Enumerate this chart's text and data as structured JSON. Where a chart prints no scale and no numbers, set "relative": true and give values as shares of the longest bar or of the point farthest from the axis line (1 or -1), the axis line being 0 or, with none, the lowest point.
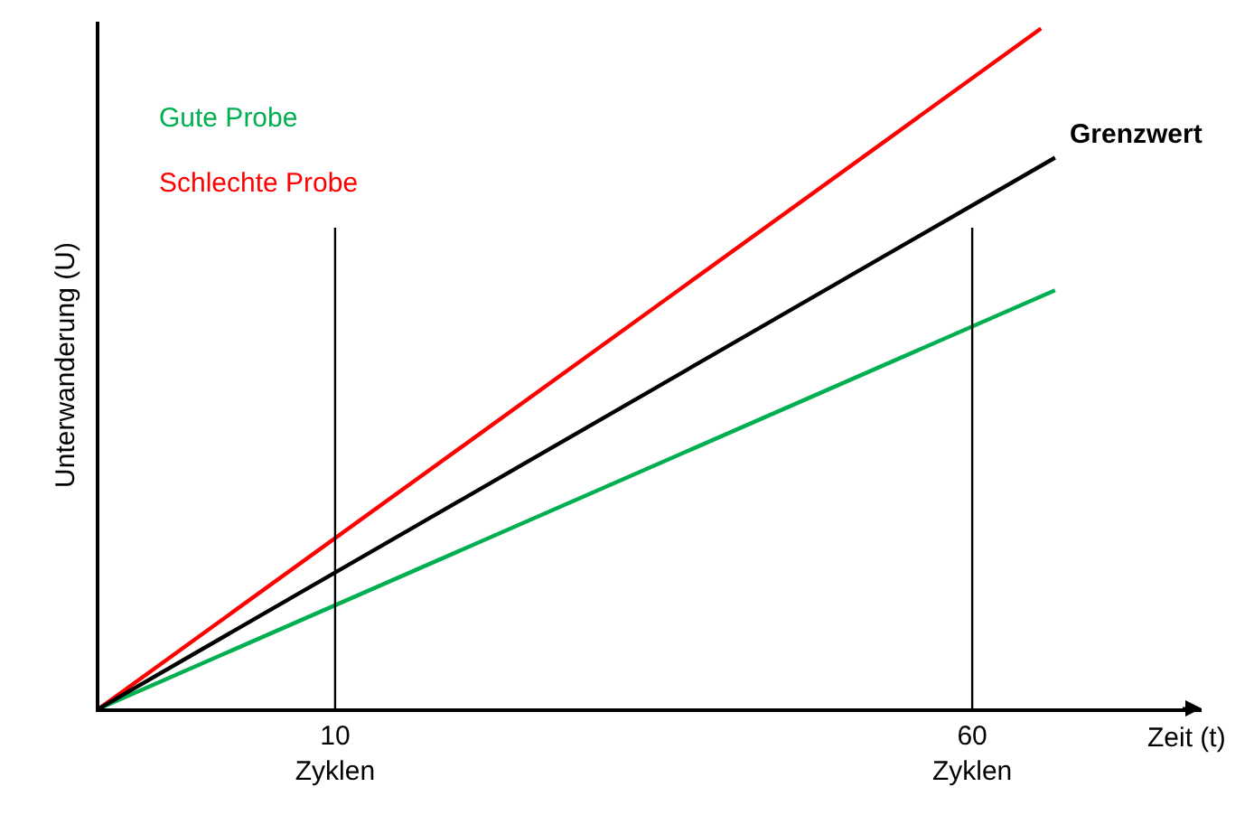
{
  "chart_data": {
    "type": "line",
    "relative": true,
    "xlabel": "Zeit (t)",
    "ylabel": "Unterwanderung (U)",
    "xlim": [
      -8.5,
      78
    ],
    "xticks": [
      {
        "value": 10,
        "label": "10\nZyklen"
      },
      {
        "value": 60,
        "label": "60\nZyklen"
      }
    ],
    "ref_lines": [
      {
        "axis": "x",
        "value": 10,
        "color": "#000000"
      },
      {
        "axis": "x",
        "value": 60,
        "color": "#000000"
      }
    ],
    "line_style": "solid",
    "marker": "none",
    "grid": false,
    "series": [
      {
        "name": "Gute Probe",
        "color": "#00b050",
        "x": [
          -8.5,
          66.5
        ],
        "values": [
          0,
          0.615
        ]
      },
      {
        "name": "Schlechte Probe",
        "color": "#ff0000",
        "x": [
          -8.5,
          65.4
        ],
        "values": [
          0,
          1
        ]
      },
      {
        "name": "Grenzwert",
        "color": "#000000",
        "x": [
          -8.5,
          66.5
        ],
        "values": [
          0,
          0.81
        ]
      }
    ]
  }
}
